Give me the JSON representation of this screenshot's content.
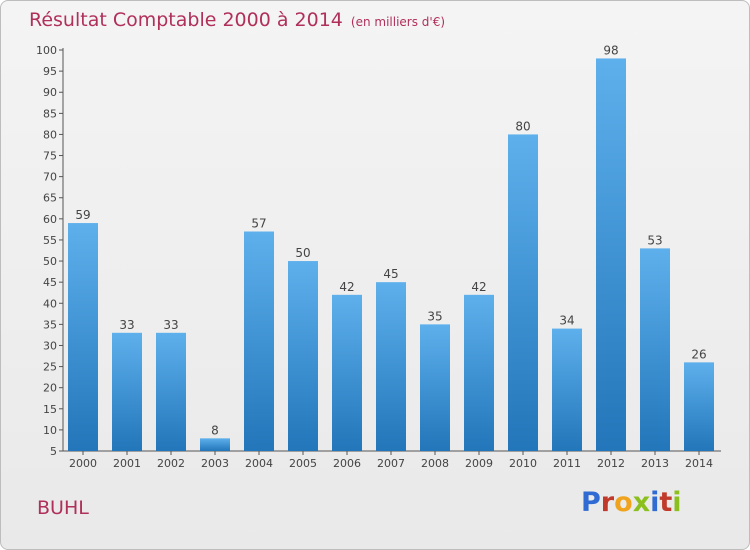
{
  "header": {
    "title": "Résultat Comptable 2000 à 2014",
    "subtitle": "(en milliers d'€)"
  },
  "footer": {
    "town": "BUHL",
    "logo_letters": [
      "P",
      "r",
      "o",
      "x",
      "i",
      "t",
      "i"
    ]
  },
  "colors": {
    "bar_top": "#5eb0ec",
    "bar_bottom": "#2276b9",
    "title": "#b0305a",
    "logo": [
      "#2f6bd3",
      "#c0392b",
      "#f0a31c",
      "#8bbf1d",
      "#2f6bd3",
      "#c0392b",
      "#8bbf1d"
    ]
  },
  "chart_data": {
    "type": "bar",
    "title": "Résultat Comptable 2000 à 2014",
    "subtitle": "(en milliers d'€)",
    "categories": [
      "2000",
      "2001",
      "2002",
      "2003",
      "2004",
      "2005",
      "2006",
      "2007",
      "2008",
      "2009",
      "2010",
      "2011",
      "2012",
      "2013",
      "2014"
    ],
    "values": [
      59,
      33,
      33,
      8,
      57,
      50,
      42,
      45,
      35,
      42,
      80,
      34,
      98,
      53,
      26
    ],
    "ylim": [
      5,
      100
    ],
    "yticks": [
      5,
      10,
      15,
      20,
      25,
      30,
      35,
      40,
      45,
      50,
      55,
      60,
      65,
      70,
      75,
      80,
      85,
      90,
      95,
      100
    ],
    "grid": false,
    "data_labels": true
  }
}
